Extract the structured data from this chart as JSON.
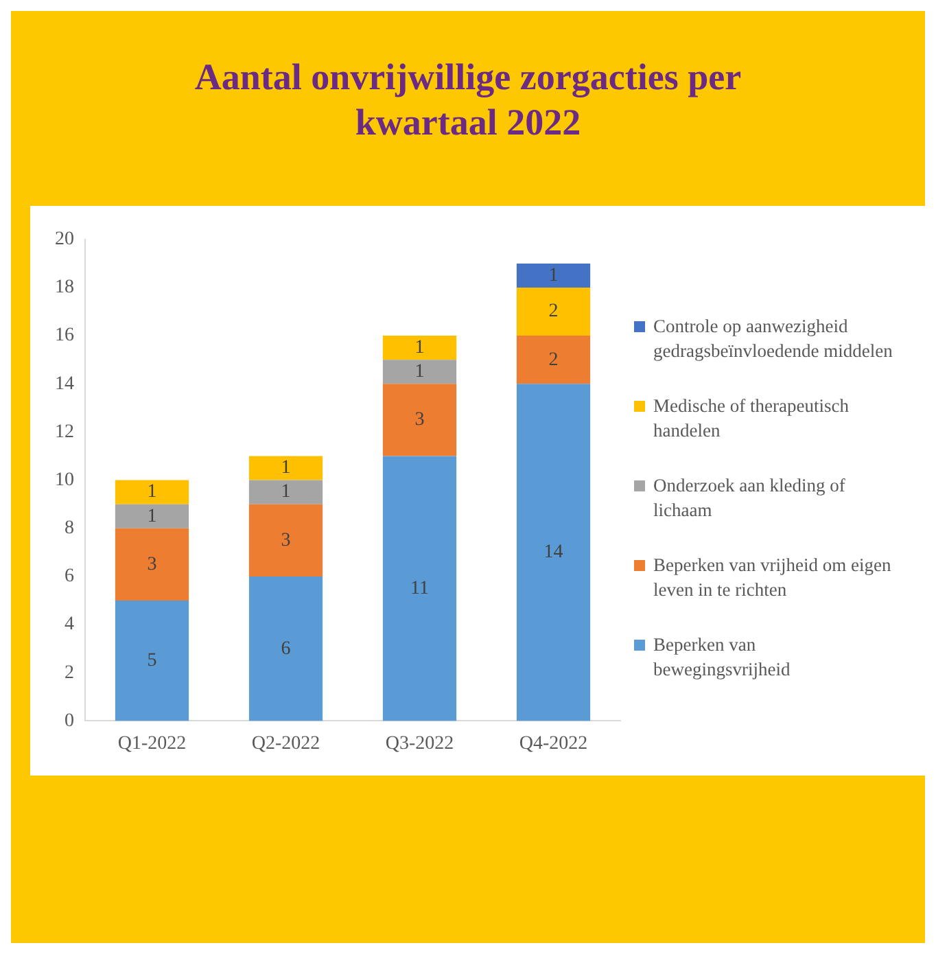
{
  "chart_data": {
    "type": "bar",
    "title": "Aantal onvrijwillige zorgacties per kwartaal 2022",
    "categories": [
      "Q1-2022",
      "Q2-2022",
      "Q3-2022",
      "Q4-2022"
    ],
    "stacked": true,
    "data_labels": true,
    "grid": false,
    "legend": "right",
    "ylim": [
      0,
      20
    ],
    "yticks": [
      0,
      2,
      4,
      6,
      8,
      10,
      12,
      14,
      16,
      18,
      20
    ],
    "series": [
      {
        "name": "Beperken van bewegingsvrijheid",
        "color": "#5b9bd5",
        "values": [
          5,
          6,
          11,
          14
        ]
      },
      {
        "name": "Beperken van vrijheid om eigen leven in te richten",
        "color": "#ed7d31",
        "values": [
          3,
          3,
          3,
          2
        ]
      },
      {
        "name": "Onderzoek aan kleding of lichaam",
        "color": "#a5a5a5",
        "values": [
          1,
          1,
          1,
          null
        ]
      },
      {
        "name": "Medische of therapeutisch handelen",
        "color": "#ffc000",
        "values": [
          1,
          1,
          1,
          2
        ]
      },
      {
        "name": "Controle op aanwezigheid gedragsbeïnvloedende middelen",
        "color": "#4472c4",
        "values": [
          null,
          null,
          null,
          1
        ]
      }
    ]
  }
}
